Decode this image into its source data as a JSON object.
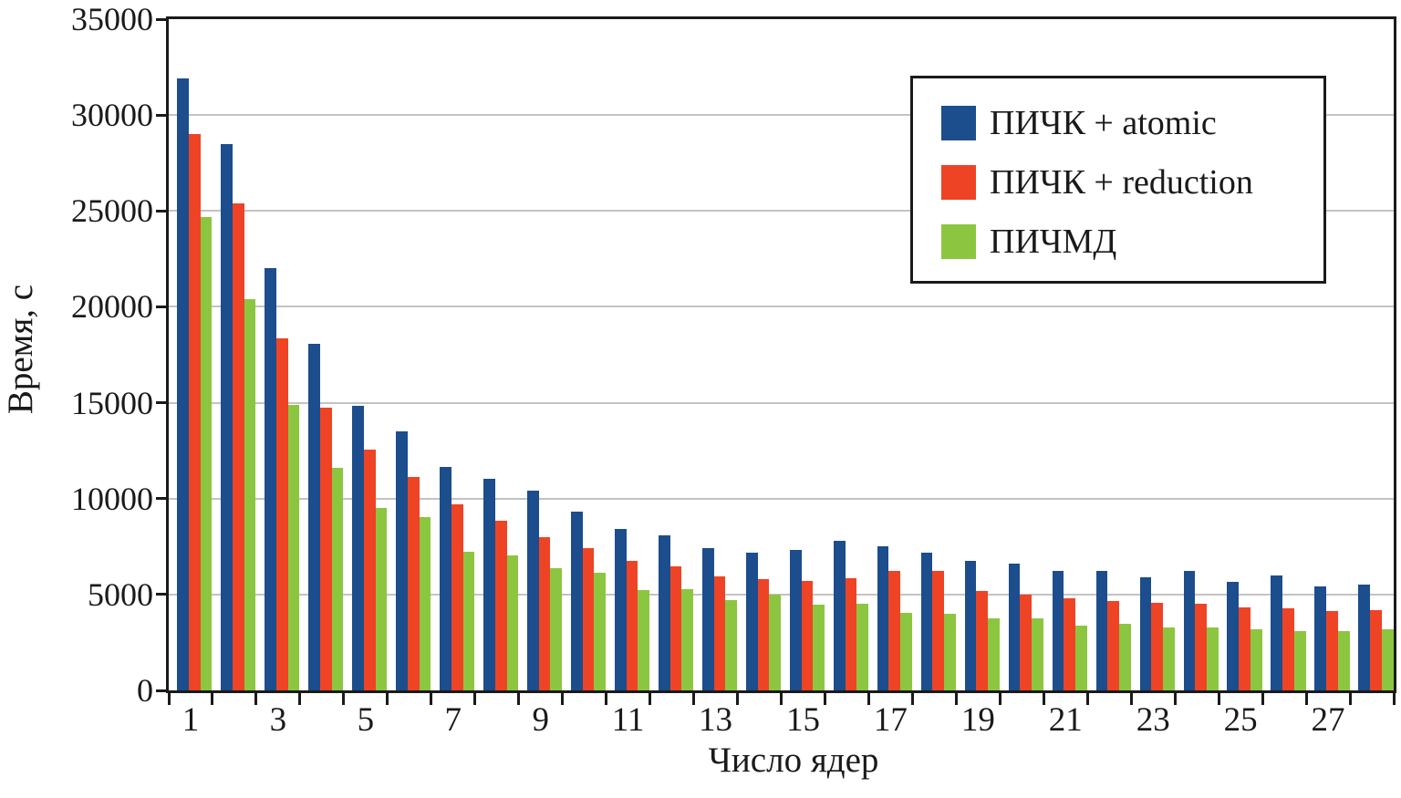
{
  "figure": {
    "background": "#ffffff",
    "axis_color": "#1a1a1a",
    "grid_color": "#c3c3c3"
  },
  "chart_data": {
    "type": "bar",
    "title": "",
    "xlabel": "Число ядер",
    "ylabel": "Время, с",
    "categories": [
      1,
      2,
      3,
      4,
      5,
      6,
      7,
      8,
      9,
      10,
      11,
      12,
      13,
      14,
      15,
      16,
      17,
      18,
      19,
      20,
      21,
      22,
      23,
      24,
      25,
      26,
      27,
      28
    ],
    "x_tick_labels": [
      "1",
      "3",
      "5",
      "7",
      "9",
      "11",
      "13",
      "15",
      "17",
      "19",
      "21",
      "23",
      "25",
      "27"
    ],
    "y_ticks": [
      0,
      5000,
      10000,
      15000,
      20000,
      25000,
      30000,
      35000
    ],
    "y_tick_labels": [
      "0",
      "5000",
      "10000",
      "15000",
      "20000",
      "25000",
      "30000",
      "35000"
    ],
    "grid_values": [
      5000,
      10000,
      15000,
      20000,
      25000,
      30000
    ],
    "ylim": [
      0,
      35000
    ],
    "grid": "horizontal",
    "legend_position": "top-right",
    "series": [
      {
        "name": "ПИЧК + atomic",
        "color": "#1c4d8c",
        "values": [
          31900,
          28500,
          22000,
          18050,
          14850,
          13500,
          11650,
          11050,
          10400,
          9300,
          8400,
          8100,
          7400,
          7200,
          7300,
          7800,
          7500,
          7200,
          6750,
          6600,
          6250,
          6250,
          5900,
          6250,
          5650,
          6000,
          5400,
          5500
        ]
      },
      {
        "name": "ПИЧК + reduction",
        "color": "#ee4425",
        "values": [
          29000,
          25400,
          18350,
          14750,
          12550,
          11150,
          9700,
          8850,
          8000,
          7400,
          6750,
          6450,
          5950,
          5800,
          5700,
          5850,
          6250,
          6250,
          5200,
          5000,
          4800,
          4650,
          4550,
          4500,
          4350,
          4300,
          4150,
          4200
        ]
      },
      {
        "name": "ПИЧМД",
        "color": "#8cc640",
        "values": [
          24700,
          20400,
          14900,
          11600,
          9500,
          9050,
          7250,
          7050,
          6350,
          6150,
          5250,
          5300,
          4700,
          5000,
          4450,
          4500,
          4050,
          4000,
          3750,
          3750,
          3400,
          3450,
          3300,
          3300,
          3200,
          3100,
          3100,
          3200
        ]
      }
    ]
  }
}
